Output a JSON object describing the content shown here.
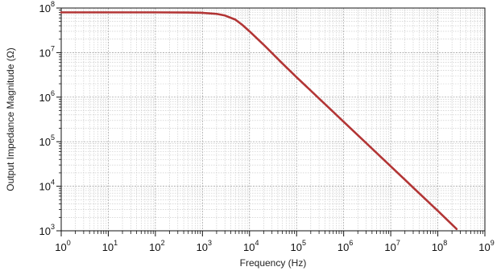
{
  "chart_data": {
    "type": "line",
    "title": "",
    "xlabel": "Frequency (Hz)",
    "ylabel": "Output Impedance Magnitude (Ω)",
    "x_scale": "log",
    "y_scale": "log",
    "xlim": [
      1,
      1000000000
    ],
    "ylim": [
      1000,
      100000000
    ],
    "grid": true,
    "legend": "none",
    "x_ticks": [
      {
        "base": "10",
        "exp": "0"
      },
      {
        "base": "10",
        "exp": "1"
      },
      {
        "base": "10",
        "exp": "2"
      },
      {
        "base": "10",
        "exp": "3"
      },
      {
        "base": "10",
        "exp": "4"
      },
      {
        "base": "10",
        "exp": "5"
      },
      {
        "base": "10",
        "exp": "6"
      },
      {
        "base": "10",
        "exp": "7"
      },
      {
        "base": "10",
        "exp": "8"
      },
      {
        "base": "10",
        "exp": "9"
      }
    ],
    "y_ticks": [
      {
        "base": "10",
        "exp": "3"
      },
      {
        "base": "10",
        "exp": "4"
      },
      {
        "base": "10",
        "exp": "5"
      },
      {
        "base": "10",
        "exp": "6"
      },
      {
        "base": "10",
        "exp": "7"
      },
      {
        "base": "10",
        "exp": "8"
      }
    ],
    "series": [
      {
        "color": "#b23535",
        "x": [
          1,
          10,
          100,
          500,
          1000,
          2000,
          3000,
          5000,
          7000,
          10000,
          20000,
          50000,
          100000,
          1000000,
          10000000,
          100000000,
          250000000
        ],
        "y": [
          80000000,
          80000000,
          80000000,
          79500000,
          78000000,
          74000000,
          68000000,
          55000000,
          42000000,
          30000000,
          15000000,
          5700000,
          2800000,
          280000,
          28000,
          2800,
          1100
        ]
      }
    ]
  }
}
